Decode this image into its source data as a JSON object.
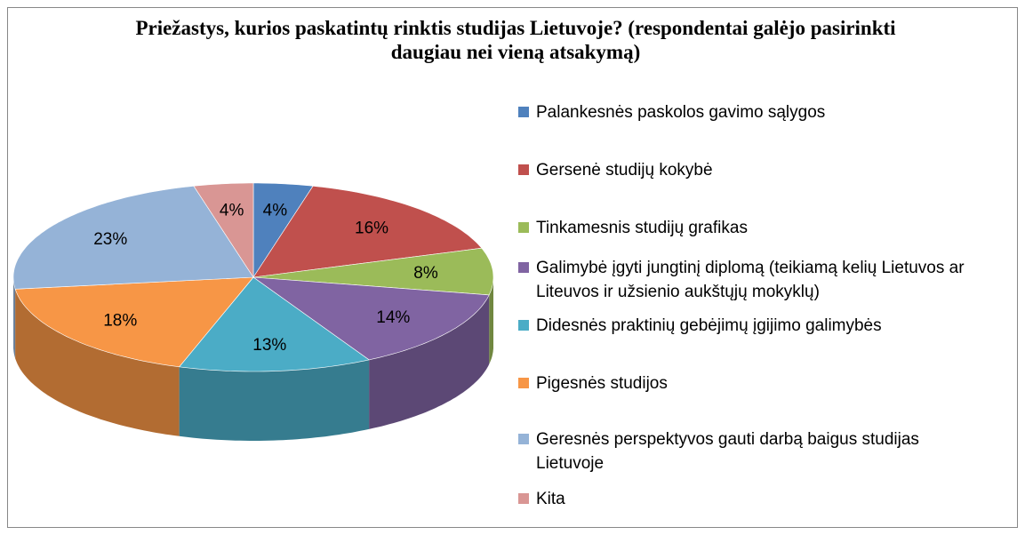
{
  "chart_data": {
    "type": "pie",
    "title": "Priežastys, kurios paskatintų rinktis studijas Lietuvoje? (respondentai galėjo pasirinkti daugiau nei vieną atsakymą)",
    "categories": [
      "Palankesnės paskolos gavimo sąlygos",
      "Gersenė studijų kokybė",
      "Tinkamesnis studijų grafikas",
      "Galimybė įgyti jungtinį diplomą (teikiamą kelių Lietuvos ar Liteuvos ir užsienio aukštųjų mokyklų)",
      "Didesnės praktinių gebėjimų įgijimo galimybės",
      "Pigesnės studijos",
      "Geresnės perspektyvos gauti darbą baigus studijas Lietuvoje",
      "Kita"
    ],
    "values": [
      4,
      16,
      8,
      14,
      13,
      18,
      23,
      4
    ],
    "value_labels": [
      "4%",
      "16%",
      "8%",
      "14%",
      "13%",
      "18%",
      "23%",
      "4%"
    ],
    "colors": [
      "#4f81bd",
      "#c0504d",
      "#9bbb59",
      "#8064a2",
      "#4bacc6",
      "#f79646",
      "#95b3d7",
      "#d99694"
    ],
    "legend": "right"
  }
}
